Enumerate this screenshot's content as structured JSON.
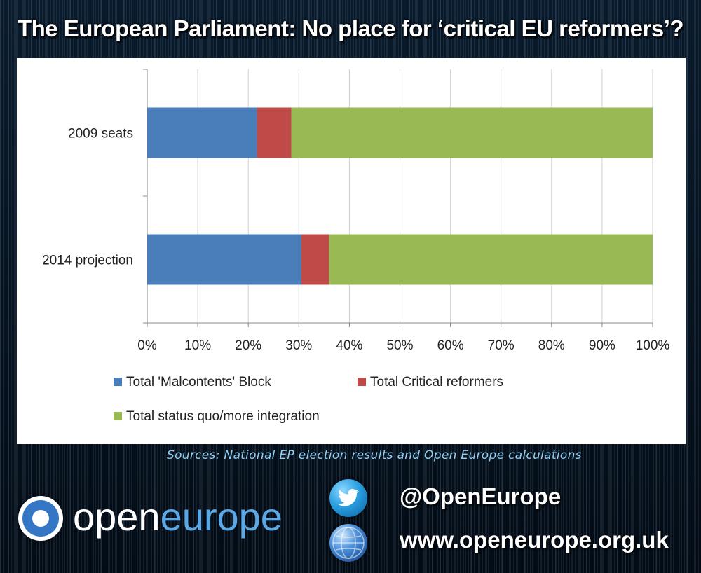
{
  "title": "The European Parliament: No place for ‘critical EU reformers’?",
  "chart_data": {
    "type": "bar",
    "orientation": "horizontal",
    "stacked": true,
    "percent": true,
    "categories": [
      "2009 seats",
      "2014 projection"
    ],
    "series": [
      {
        "name": "Total 'Malcontents' Block",
        "color": "#4a7ebb",
        "values": [
          21.7,
          30.5
        ]
      },
      {
        "name": "Total Critical reformers",
        "color": "#be4b48",
        "values": [
          6.8,
          5.5
        ]
      },
      {
        "name": "Total status quo/more integration",
        "color": "#98b954",
        "values": [
          71.5,
          64.0
        ]
      }
    ],
    "xlim": [
      0,
      100
    ],
    "xticks": [
      "0%",
      "10%",
      "20%",
      "30%",
      "40%",
      "50%",
      "60%",
      "70%",
      "80%",
      "90%",
      "100%"
    ],
    "grid": true,
    "legend": "bottom"
  },
  "sources": "Sources: National EP election results and Open Europe calculations",
  "logo": {
    "open": "open",
    "europe": "europe"
  },
  "social": {
    "twitter_handle": "@OpenEurope",
    "website": "www.openeurope.org.uk",
    "twitter_icon": "twitter-bird-icon",
    "web_icon": "globe-icon"
  }
}
